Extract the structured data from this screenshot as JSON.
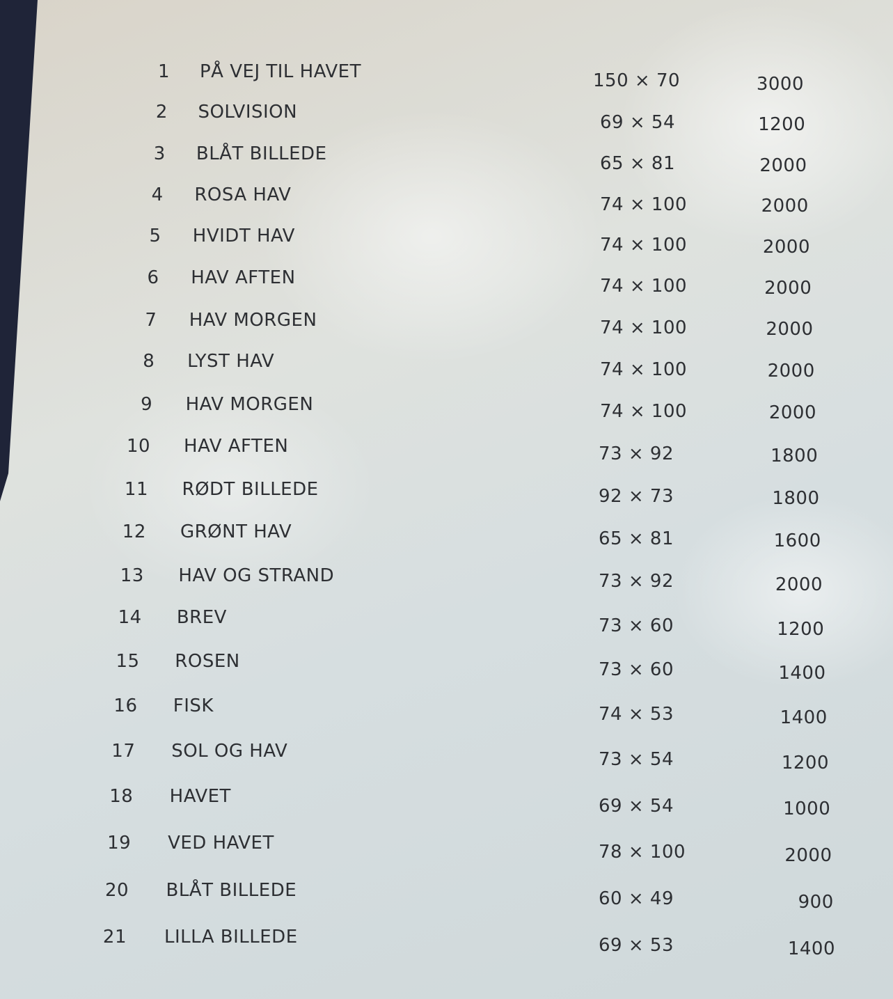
{
  "items": [
    {
      "no": "1",
      "title": "PÅ VEJ TIL HAVET",
      "size": "150 × 70",
      "price": "3000"
    },
    {
      "no": "2",
      "title": "SOLVISION",
      "size": "69 × 54",
      "price": "1200"
    },
    {
      "no": "3",
      "title": "BLÅT BILLEDE",
      "size": "65 × 81",
      "price": "2000"
    },
    {
      "no": "4",
      "title": "ROSA HAV",
      "size": "74 × 100",
      "price": "2000"
    },
    {
      "no": "5",
      "title": "HVIDT HAV",
      "size": "74 × 100",
      "price": "2000"
    },
    {
      "no": "6",
      "title": "HAV AFTEN",
      "size": "74 × 100",
      "price": "2000"
    },
    {
      "no": "7",
      "title": "HAV MORGEN",
      "size": "74 × 100",
      "price": "2000"
    },
    {
      "no": "8",
      "title": "LYST HAV",
      "size": "74 × 100",
      "price": "2000"
    },
    {
      "no": "9",
      "title": "HAV MORGEN",
      "size": "74 × 100",
      "price": "2000"
    },
    {
      "no": "10",
      "title": "HAV AFTEN",
      "size": "73 × 92",
      "price": "1800"
    },
    {
      "no": "11",
      "title": "RØDT BILLEDE",
      "size": "92 × 73",
      "price": "1800"
    },
    {
      "no": "12",
      "title": "GRØNT HAV",
      "size": "65 × 81",
      "price": "1600"
    },
    {
      "no": "13",
      "title": "HAV OG STRAND",
      "size": "73 × 92",
      "price": "2000"
    },
    {
      "no": "14",
      "title": "BREV",
      "size": "73 × 60",
      "price": "1200"
    },
    {
      "no": "15",
      "title": "ROSEN",
      "size": "73 × 60",
      "price": "1400"
    },
    {
      "no": "16",
      "title": "FISK",
      "size": "74 × 53",
      "price": "1400"
    },
    {
      "no": "17",
      "title": "SOL OG HAV",
      "size": "73 × 54",
      "price": "1200"
    },
    {
      "no": "18",
      "title": "HAVET",
      "size": "69 × 54",
      "price": "1000"
    },
    {
      "no": "19",
      "title": "VED HAVET",
      "size": "78 × 100",
      "price": "2000"
    },
    {
      "no": "20",
      "title": "BLÅT BILLEDE",
      "size": "60 × 49",
      "price": "900"
    },
    {
      "no": "21",
      "title": "LILLA BILLEDE",
      "size": "69 × 53",
      "price": "1400"
    }
  ]
}
